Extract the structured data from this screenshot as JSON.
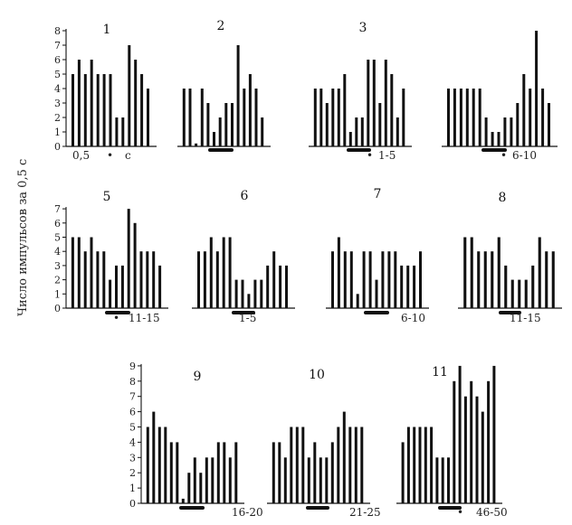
{
  "figure": {
    "ylabel": "Число импульсов за 0,5 с"
  },
  "chart_data": [
    {
      "type": "bar",
      "title": "1",
      "ylim": [
        0,
        8
      ],
      "yticks": [
        "0",
        "1",
        "2",
        "3",
        "4",
        "5",
        "6",
        "7",
        "8"
      ],
      "values": [
        5,
        6,
        5,
        6,
        5,
        5,
        5,
        2,
        2,
        7,
        6,
        5,
        4
      ],
      "footer": [
        "0,5",
        "•",
        "с"
      ],
      "stim": false
    },
    {
      "type": "bar",
      "title": "2",
      "ylim": [
        0,
        8
      ],
      "yticks": [],
      "values": [
        4,
        4,
        0.2,
        4,
        3,
        1,
        2,
        3,
        3,
        7,
        4,
        5,
        4,
        2
      ],
      "footer": [],
      "stim": true
    },
    {
      "type": "bar",
      "title": "3",
      "ylim": [
        0,
        8
      ],
      "yticks": [],
      "values": [
        4,
        4,
        3,
        4,
        4,
        5,
        1,
        2,
        2,
        6,
        6,
        3,
        6,
        5,
        2,
        4
      ],
      "footer": [
        "•",
        "1-5"
      ],
      "stim": true
    },
    {
      "type": "bar",
      "title": "4",
      "ylim": [
        0,
        8
      ],
      "yticks": [],
      "values": [
        4,
        4,
        4,
        4,
        4,
        4,
        2,
        1,
        1,
        2,
        2,
        3,
        5,
        4,
        8,
        4,
        3
      ],
      "footer": [
        "•",
        "6-10"
      ],
      "stim": true
    },
    {
      "type": "bar",
      "title": "5",
      "ylim": [
        0,
        7
      ],
      "yticks": [
        "0",
        "1",
        "2",
        "3",
        "4",
        "5",
        "6",
        "7"
      ],
      "values": [
        5,
        5,
        4,
        5,
        4,
        4,
        2,
        3,
        3,
        7,
        6,
        4,
        4,
        4,
        3
      ],
      "footer": [
        "•",
        "11-15"
      ],
      "stim": true
    },
    {
      "type": "bar",
      "title": "6",
      "ylim": [
        0,
        7
      ],
      "yticks": [],
      "values": [
        4,
        4,
        5,
        4,
        5,
        5,
        2,
        2,
        1,
        2,
        2,
        3,
        4,
        3,
        3
      ],
      "footer": [
        "1-5"
      ],
      "stim": true
    },
    {
      "type": "bar",
      "title": "7",
      "ylim": [
        0,
        7
      ],
      "yticks": [],
      "values": [
        4,
        5,
        4,
        4,
        1,
        4,
        4,
        2,
        4,
        4,
        4,
        3,
        3,
        3,
        4
      ],
      "footer": [
        "6-10"
      ],
      "stim": true
    },
    {
      "type": "bar",
      "title": "8",
      "ylim": [
        0,
        7
      ],
      "yticks": [],
      "values": [
        5,
        5,
        4,
        4,
        4,
        5,
        3,
        2,
        2,
        2,
        3,
        5,
        4,
        4
      ],
      "footer": [
        "11-15"
      ],
      "stim": true
    },
    {
      "type": "bar",
      "title": "9",
      "ylim": [
        0,
        9
      ],
      "yticks": [
        "0",
        "1",
        "2",
        "3",
        "4",
        "5",
        "6",
        "7",
        "8",
        "9"
      ],
      "values": [
        5,
        6,
        5,
        5,
        4,
        4,
        0.3,
        2,
        3,
        2,
        3,
        3,
        4,
        4,
        3,
        4
      ],
      "footer": [
        "16-20"
      ],
      "stim": true
    },
    {
      "type": "bar",
      "title": "10",
      "ylim": [
        0,
        9
      ],
      "yticks": [],
      "values": [
        4,
        4,
        3,
        5,
        5,
        5,
        3,
        4,
        3,
        3,
        4,
        5,
        6,
        5,
        5,
        5
      ],
      "footer": [
        "21-25"
      ],
      "stim": true
    },
    {
      "type": "bar",
      "title": "11",
      "ylim": [
        0,
        9
      ],
      "yticks": [],
      "values": [
        4,
        5,
        5,
        5,
        5,
        5,
        3,
        3,
        3,
        8,
        9,
        7,
        8,
        7,
        6,
        8,
        9
      ],
      "footer": [
        "•",
        "46-50"
      ],
      "stim": true
    }
  ]
}
